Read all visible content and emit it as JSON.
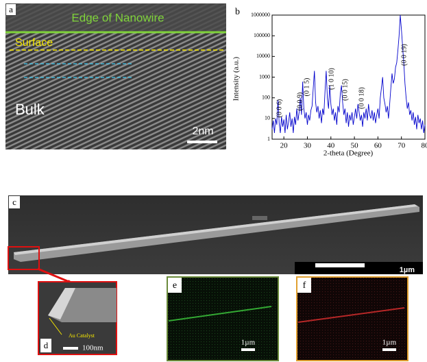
{
  "figure": {
    "panel_a": {
      "label": "a",
      "edge": "Edge of Nanowire",
      "surface": "Surface",
      "bulk": "Bulk",
      "scale": "2nm"
    },
    "panel_c": {
      "label": "c",
      "scale": "1µm"
    },
    "panel_d": {
      "label": "d",
      "catalyst": "Au Catalyst",
      "scale": "100nm"
    },
    "panel_e": {
      "label": "e",
      "scale": "1µm"
    },
    "panel_f": {
      "label": "f",
      "scale": "1µm"
    }
  },
  "chart_data": {
    "type": "line",
    "title": "b",
    "xlabel": "2-theta (Degree)",
    "ylabel": "Intensity (a.u.)",
    "color": "#0000cc",
    "log_y": true,
    "xlim": [
      15,
      80
    ],
    "xticks": [
      20,
      30,
      40,
      50,
      60,
      70,
      80
    ],
    "ylim": [
      1,
      1000000
    ],
    "yticks": [
      1,
      10,
      100,
      1000,
      10000,
      100000,
      1000000
    ],
    "annotations": [
      "(0 0 6)",
      "(0 0 9)",
      "(0 1 5)",
      "(1 0 10)",
      "(0 0 15)",
      "(0 0 18)",
      "(0 0 19)"
    ],
    "x": [
      15,
      15.5,
      16,
      16.5,
      17,
      17.5,
      18,
      18.5,
      19,
      19.5,
      20,
      20.5,
      21,
      21.5,
      22,
      22.5,
      23,
      23.5,
      24,
      24.5,
      25,
      25.5,
      26,
      26.5,
      27,
      27.5,
      28,
      28.5,
      29,
      29.5,
      30,
      30.5,
      31,
      31.5,
      32,
      32.5,
      33,
      33.5,
      34,
      34.5,
      35,
      35.5,
      36,
      36.5,
      37,
      37.5,
      38,
      38.5,
      39,
      39.5,
      40,
      40.5,
      41,
      41.5,
      42,
      42.5,
      43,
      43.5,
      44,
      44.5,
      45,
      45.5,
      46,
      46.5,
      47,
      47.5,
      48,
      48.5,
      49,
      49.5,
      50,
      50.5,
      51,
      51.5,
      52,
      52.5,
      53,
      53.5,
      54,
      54.5,
      55,
      55.5,
      56,
      56.5,
      57,
      57.5,
      58,
      58.5,
      59,
      59.5,
      60,
      60.5,
      61,
      61.5,
      62,
      62.5,
      63,
      63.5,
      64,
      64.5,
      65,
      65.5,
      66,
      66.5,
      67,
      67.5,
      68,
      68.5,
      69,
      69.5,
      70,
      70.5,
      71,
      71.5,
      72,
      72.5,
      73,
      73.5,
      74,
      74.5,
      75,
      75.5,
      76,
      76.5,
      77,
      77.5,
      78,
      78.5,
      79,
      79.5,
      80
    ],
    "values": [
      3,
      8,
      2,
      10,
      5,
      80,
      6,
      2,
      12,
      4,
      9,
      2,
      15,
      3,
      7,
      20,
      4,
      10,
      2,
      12,
      5,
      30,
      8,
      20,
      100,
      15,
      600,
      30,
      10,
      20,
      5,
      15,
      8,
      25,
      40,
      300,
      2000,
      60,
      20,
      40,
      10,
      25,
      6,
      30,
      15,
      200,
      2000,
      100,
      30,
      400,
      50,
      15,
      30,
      8,
      20,
      5,
      40,
      20,
      150,
      400,
      60,
      15,
      30,
      6,
      20,
      4,
      15,
      8,
      20,
      5,
      12,
      30,
      10,
      50,
      20,
      8,
      15,
      4,
      20,
      10,
      30,
      8,
      50,
      15,
      10,
      25,
      8,
      20,
      6,
      15,
      30,
      10,
      100,
      300,
      1000,
      100,
      50,
      20,
      40,
      10,
      50,
      300,
      1500,
      500,
      800,
      3000,
      5000,
      20000,
      100000,
      1000000,
      200000,
      30000,
      5000,
      500,
      100,
      30,
      60,
      15,
      25,
      8,
      20,
      5,
      12,
      3,
      15,
      6,
      10,
      3,
      8,
      2,
      5
    ]
  }
}
